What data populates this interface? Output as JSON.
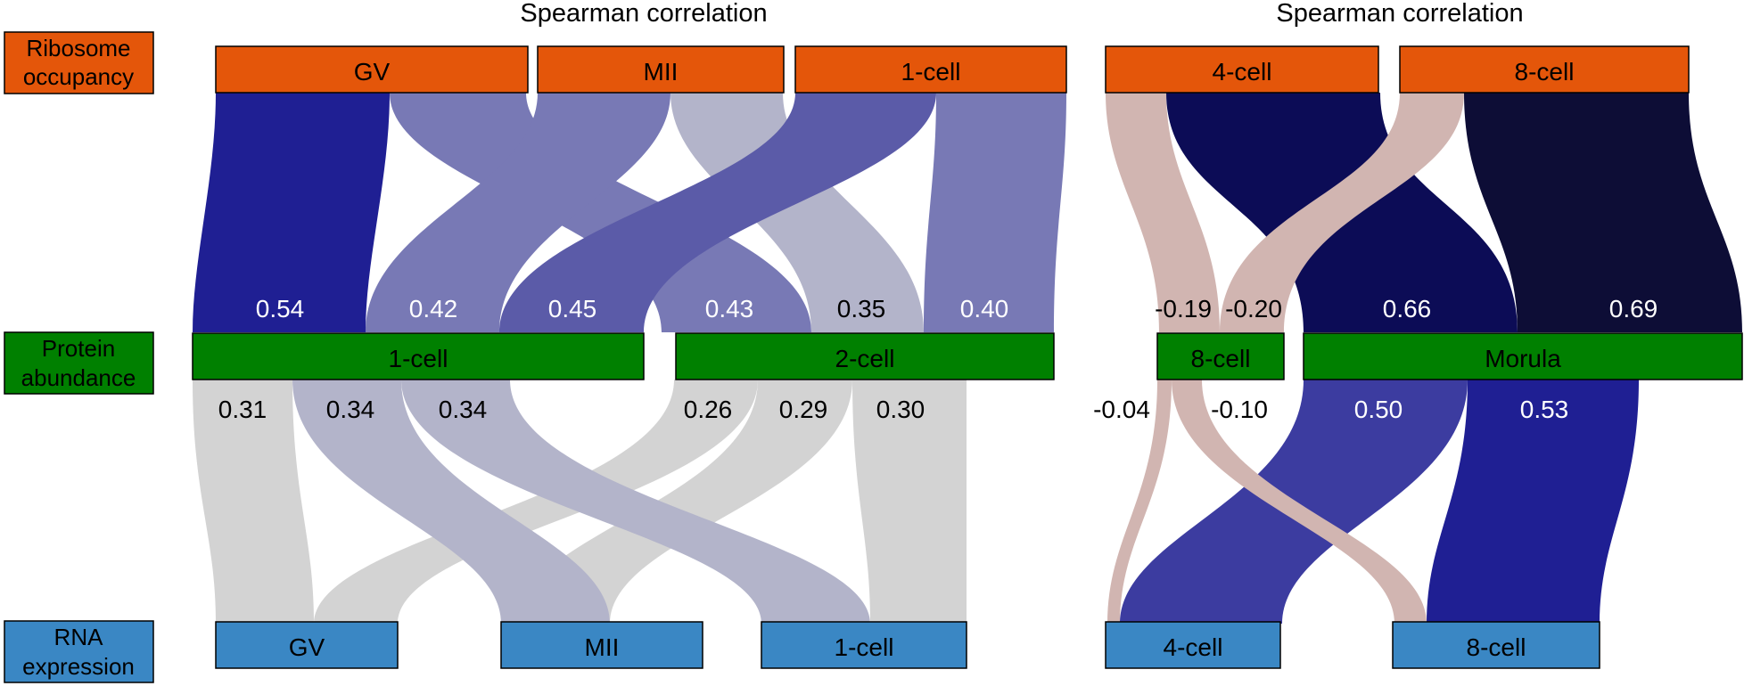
{
  "titles": [
    "Spearman correlation",
    "Spearman correlation"
  ],
  "row_labels": {
    "ribosome": [
      "Ribosome",
      "occupancy"
    ],
    "protein": [
      "Protein",
      "abundance"
    ],
    "rna": [
      "RNA",
      "expression"
    ]
  },
  "colors": {
    "ribosome": "#e4560a",
    "protein": "#008000",
    "rna": "#3a87c4",
    "flow_0_54": "#1f1f93",
    "flow_0_42": "#7879b5",
    "flow_0_45": "#5b5ba8",
    "flow_0_43": "#7879b5",
    "flow_0_35": "#b3b4ca",
    "flow_0_40": "#7879b5",
    "flow_0_66": "#0c0c56",
    "flow_0_69": "#0d0d36",
    "flow_neg": "#d1b5b1",
    "flow_0_50": "#3c3ca0",
    "flow_0_53": "#1f1f93",
    "flow_0_34": "#b3b4ca",
    "flow_low": "#d3d3d3"
  },
  "nodes": {
    "top": [
      {
        "id": "r_gv",
        "label": "GV"
      },
      {
        "id": "r_mii",
        "label": "MII"
      },
      {
        "id": "r_1cell",
        "label": "1-cell"
      },
      {
        "id": "r_4cell",
        "label": "4-cell"
      },
      {
        "id": "r_8cell",
        "label": "8-cell"
      }
    ],
    "middle": [
      {
        "id": "p_1cell",
        "label": "1-cell"
      },
      {
        "id": "p_2cell",
        "label": "2-cell"
      },
      {
        "id": "p_8cell",
        "label": "8-cell"
      },
      {
        "id": "p_morula",
        "label": "Morula"
      }
    ],
    "bottom": [
      {
        "id": "m_gv",
        "label": "GV"
      },
      {
        "id": "m_mii",
        "label": "MII"
      },
      {
        "id": "m_1cell",
        "label": "1-cell"
      },
      {
        "id": "m_4cell",
        "label": "4-cell"
      },
      {
        "id": "m_8cell",
        "label": "8-cell"
      }
    ]
  },
  "links_upper": [
    {
      "from": "GV",
      "to": "1-cell",
      "value": "0.54"
    },
    {
      "from": "MII",
      "to": "1-cell",
      "value": "0.42"
    },
    {
      "from": "1-cell",
      "to": "1-cell",
      "value": "0.45"
    },
    {
      "from": "GV",
      "to": "2-cell",
      "value": "0.43"
    },
    {
      "from": "MII",
      "to": "2-cell",
      "value": "0.35"
    },
    {
      "from": "1-cell",
      "to": "2-cell",
      "value": "0.40"
    },
    {
      "from": "4-cell",
      "to": "8-cell",
      "value": "-0.19"
    },
    {
      "from": "8-cell",
      "to": "8-cell",
      "value": "-0.20"
    },
    {
      "from": "4-cell",
      "to": "Morula",
      "value": "0.66"
    },
    {
      "from": "8-cell",
      "to": "Morula",
      "value": "0.69"
    }
  ],
  "links_lower": [
    {
      "from": "1-cell",
      "to": "GV",
      "value": "0.31"
    },
    {
      "from": "1-cell",
      "to": "MII",
      "value": "0.34"
    },
    {
      "from": "1-cell",
      "to": "1-cell",
      "value": "0.34"
    },
    {
      "from": "2-cell",
      "to": "GV",
      "value": "0.26"
    },
    {
      "from": "2-cell",
      "to": "MII",
      "value": "0.29"
    },
    {
      "from": "2-cell",
      "to": "1-cell",
      "value": "0.30"
    },
    {
      "from": "8-cell",
      "to": "4-cell",
      "value": "-0.04"
    },
    {
      "from": "8-cell",
      "to": "8-cell",
      "value": "-0.10"
    },
    {
      "from": "Morula",
      "to": "4-cell",
      "value": "0.50"
    },
    {
      "from": "Morula",
      "to": "8-cell",
      "value": "0.53"
    }
  ]
}
